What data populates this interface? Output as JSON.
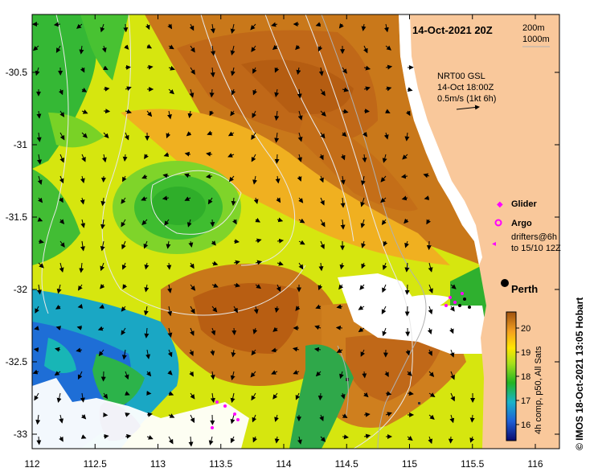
{
  "title": "14-Oct-2021 20Z",
  "isobath_labels": [
    "200m",
    "1000m"
  ],
  "currents_block": [
    "NRT00 GSL",
    "14-Oct 18:00Z",
    "0.5m/s (1kt 6h)"
  ],
  "legend": {
    "glider": "Glider",
    "argo": "Argo",
    "drifters_line1": "drifters@6h",
    "drifters_line2": "to 15/10 12Z"
  },
  "city_label": "Perth",
  "colorbar": {
    "ticks": [
      "20",
      "19",
      "18",
      "17",
      "16"
    ],
    "label": "4h comp, p50, All Sats"
  },
  "credit": "© IMOS 18-Oct-2021 13:05 Hobart",
  "axes": {
    "x_ticks": [
      "112",
      "112.5",
      "113",
      "113.5",
      "114",
      "114.5",
      "115",
      "115.5",
      "116"
    ],
    "y_ticks": [
      "-30.5",
      "-31",
      "-31.5",
      "-32",
      "-32.5",
      "-33"
    ]
  },
  "colors": {
    "land": "#f9c89b",
    "sst_cold": "#1a1a8a",
    "sst_mid": "#3cc13c",
    "sst_warm": "#c86a14",
    "glider": "#ff00ff",
    "argo": "#ff00ff"
  }
}
